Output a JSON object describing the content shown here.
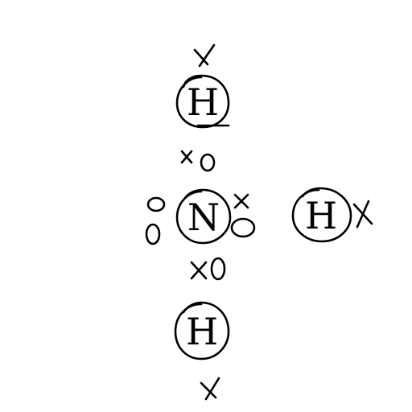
{
  "diagram": {
    "atoms": {
      "h_top": {
        "symbol": "H"
      },
      "n_center": {
        "symbol": "N"
      },
      "h_right": {
        "symbol": "H"
      },
      "h_bottom": {
        "symbol": "H"
      }
    },
    "electron_marks": {
      "cross": "x",
      "dot": "o"
    }
  }
}
